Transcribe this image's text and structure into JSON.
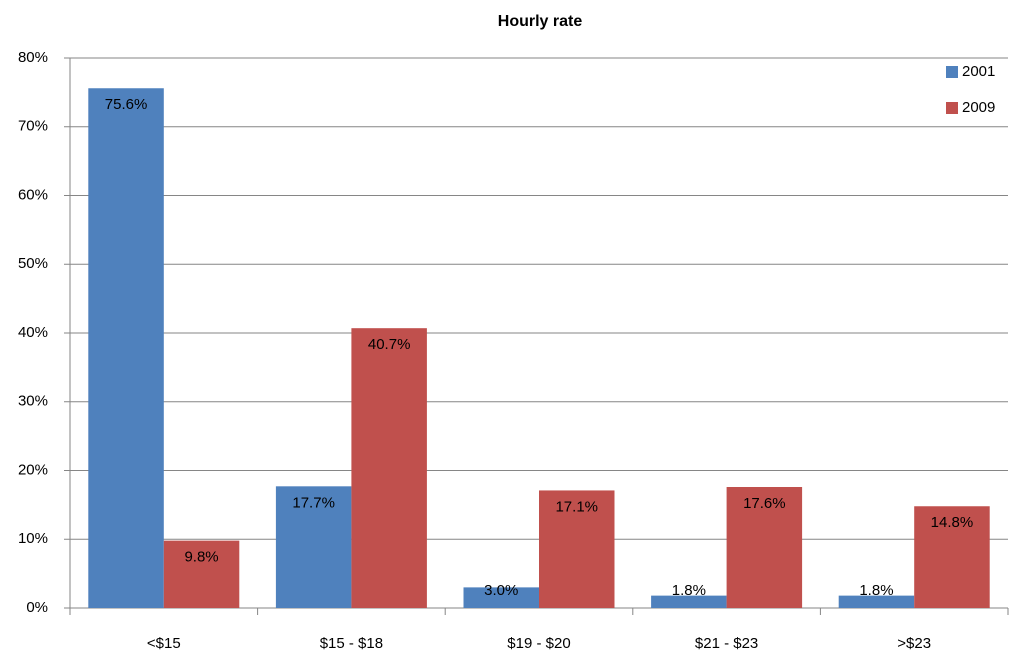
{
  "chart_data": {
    "type": "bar",
    "title": "Hourly rate",
    "categories": [
      "<$15",
      "$15 - $18",
      "$19 - $20",
      "$21 - $23",
      ">$23"
    ],
    "series": [
      {
        "name": "2001",
        "color": "#4f81bd",
        "values": [
          75.6,
          17.7,
          3.0,
          1.8,
          1.8
        ],
        "value_labels": [
          "75.6%",
          "17.7%",
          "3.0%",
          "1.8%",
          "1.8%"
        ]
      },
      {
        "name": "2009",
        "color": "#c0504d",
        "values": [
          9.8,
          40.7,
          17.1,
          17.6,
          14.8
        ],
        "value_labels": [
          "9.8%",
          "40.7%",
          "17.1%",
          "17.6%",
          "14.8%"
        ]
      }
    ],
    "ylim": [
      0,
      80
    ],
    "yticks": [
      {
        "value": 0,
        "label": "0%"
      },
      {
        "value": 10,
        "label": "10%"
      },
      {
        "value": 20,
        "label": "20%"
      },
      {
        "value": 30,
        "label": "30%"
      },
      {
        "value": 40,
        "label": "40%"
      },
      {
        "value": 50,
        "label": "50%"
      },
      {
        "value": 60,
        "label": "60%"
      },
      {
        "value": 70,
        "label": "70%"
      },
      {
        "value": 80,
        "label": "80%"
      }
    ],
    "grid": true,
    "legend": "top-right"
  }
}
